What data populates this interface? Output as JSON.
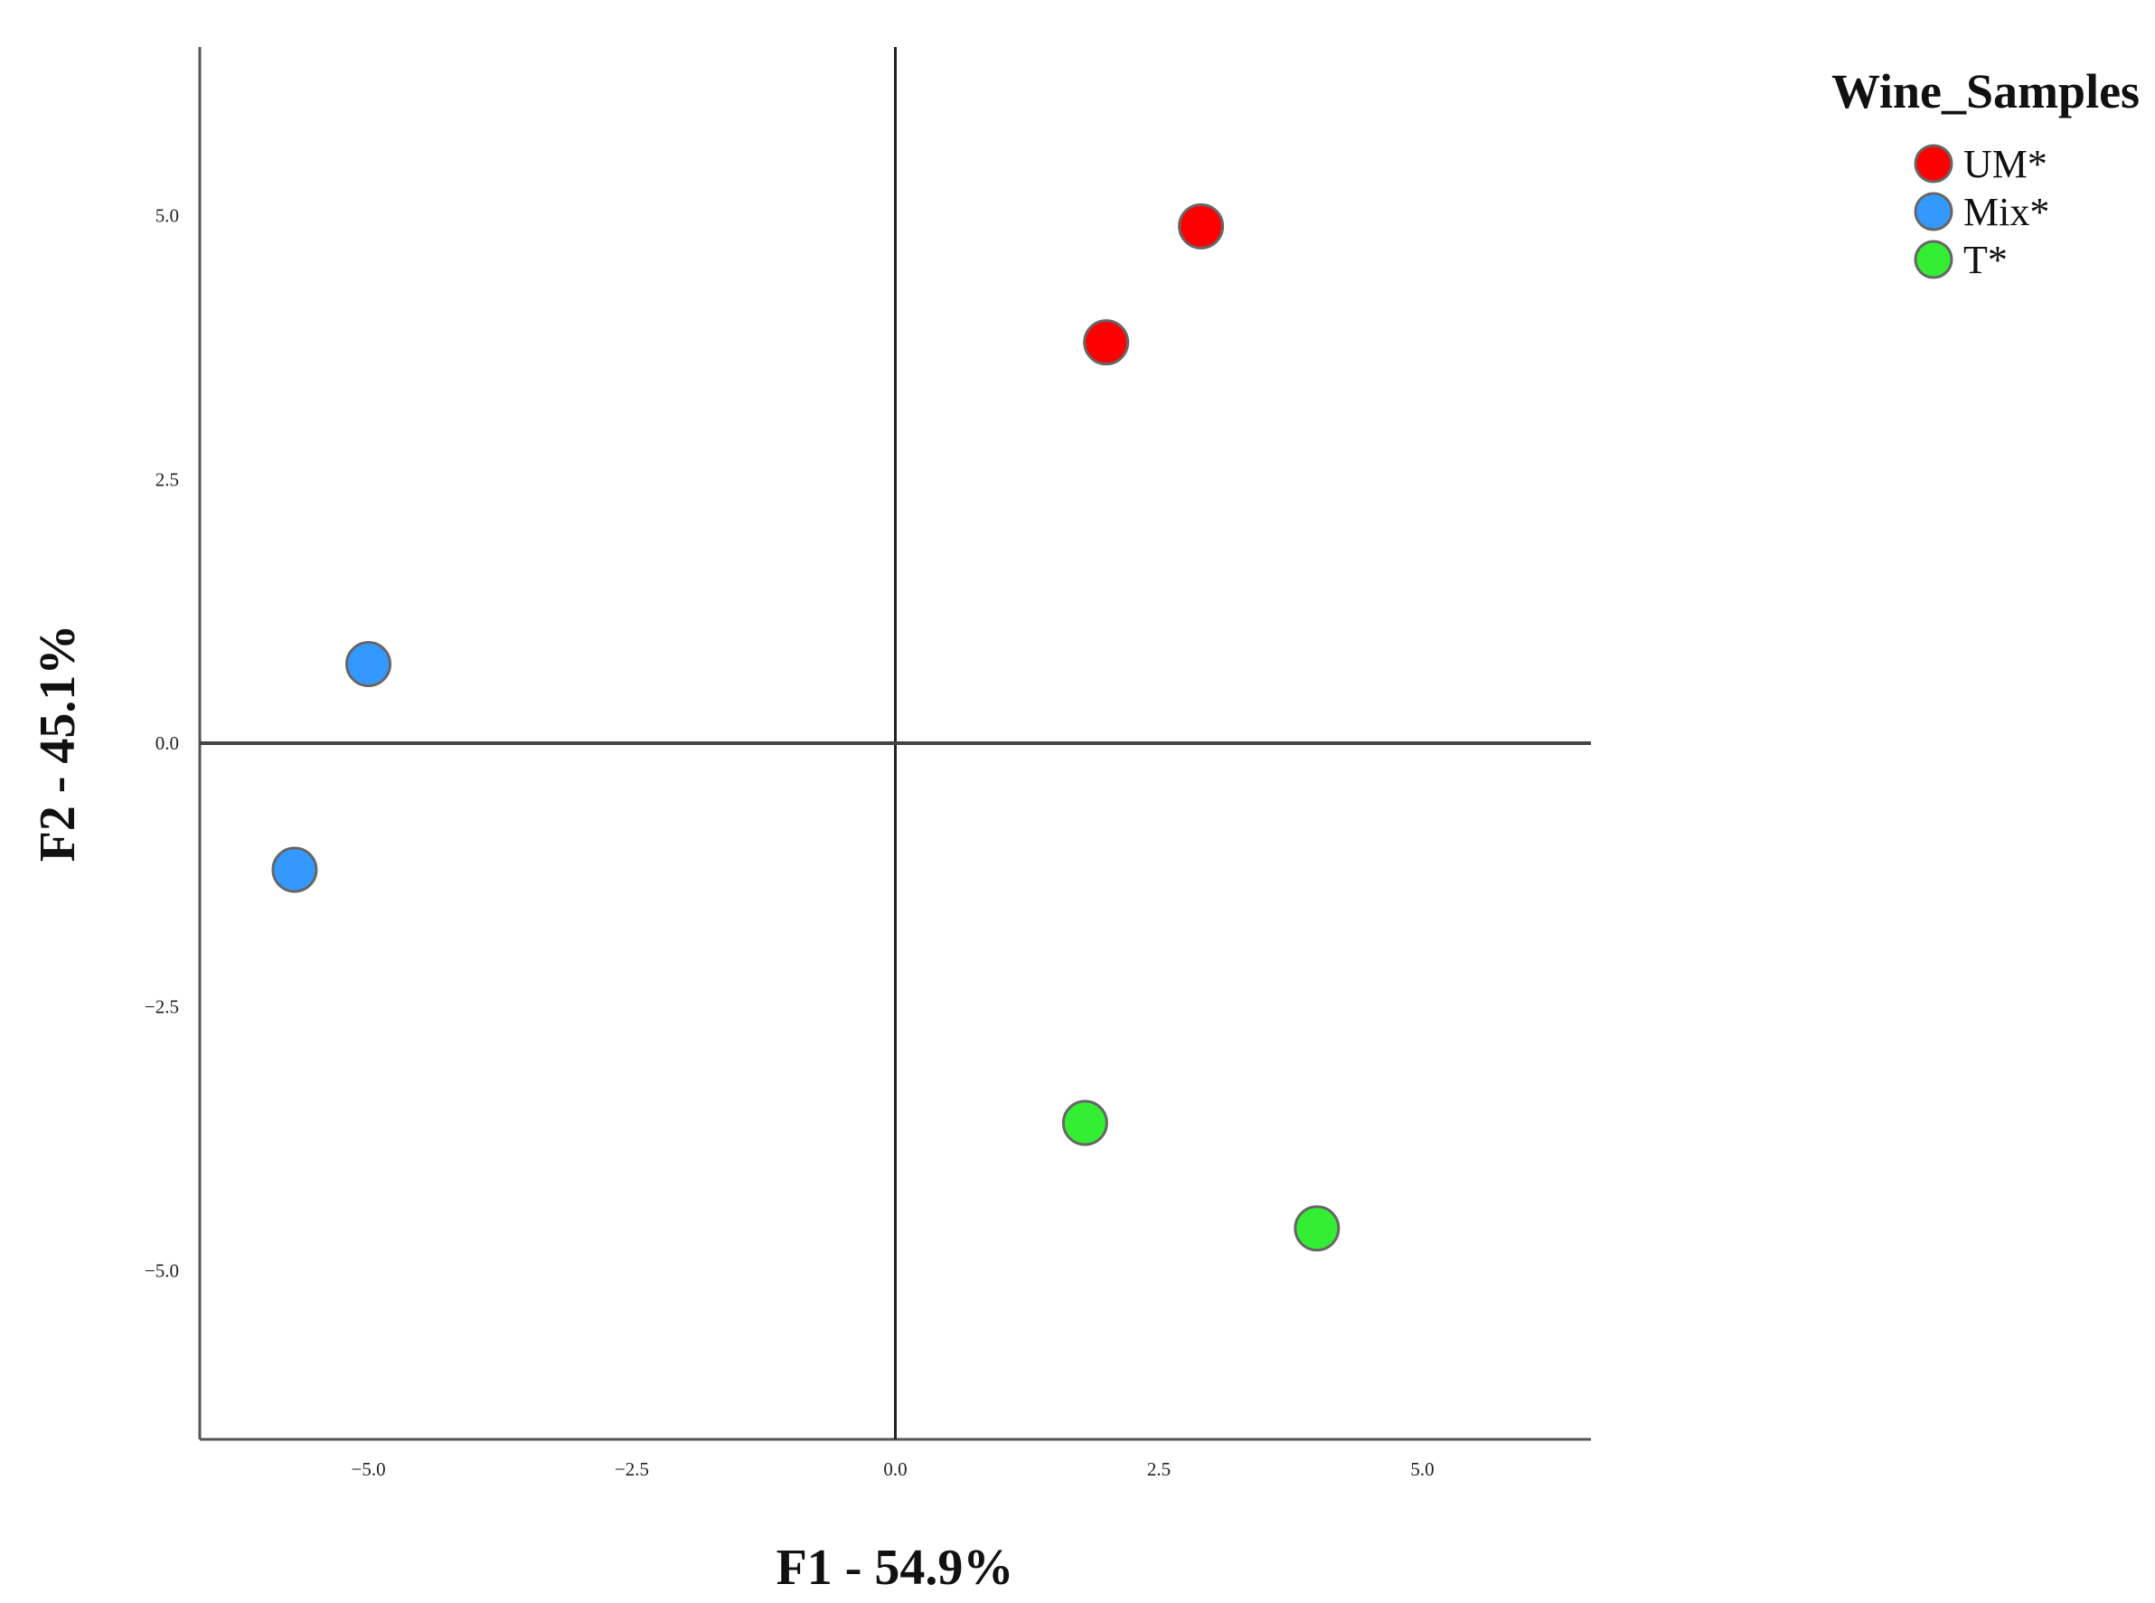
{
  "chart_data": {
    "type": "scatter",
    "title": "",
    "xlabel": "F1 - 54.9%",
    "ylabel": "F2 - 45.1%",
    "xlim": [
      -6.6,
      6.6
    ],
    "ylim": [
      -6.6,
      6.6
    ],
    "grid": false,
    "reference_lines": {
      "x": 0,
      "y": 0
    },
    "x_ticks": [
      {
        "value": -5.0,
        "label": "−5.0"
      },
      {
        "value": -2.5,
        "label": "−2.5"
      },
      {
        "value": 0.0,
        "label": "0.0"
      },
      {
        "value": 2.5,
        "label": "2.5"
      },
      {
        "value": 5.0,
        "label": "5.0"
      }
    ],
    "y_ticks": [
      {
        "value": 5.0,
        "label": "5.0"
      },
      {
        "value": 2.5,
        "label": "2.5"
      },
      {
        "value": 0.0,
        "label": "0.0"
      },
      {
        "value": -2.5,
        "label": "−2.5"
      },
      {
        "value": -5.0,
        "label": "−5.0"
      }
    ],
    "legend": {
      "title": "Wine_Samples",
      "placement": "top-right"
    },
    "series": [
      {
        "name": "UM*",
        "color": "#ff0000",
        "points": [
          {
            "x": 2.9,
            "y": 4.9
          },
          {
            "x": 2.0,
            "y": 3.8
          }
        ]
      },
      {
        "name": "Mix*",
        "color": "#3399ff",
        "points": [
          {
            "x": -5.0,
            "y": 0.75
          },
          {
            "x": -5.7,
            "y": -1.2
          }
        ]
      },
      {
        "name": "T*",
        "color": "#33ee33",
        "points": [
          {
            "x": 1.8,
            "y": -3.6
          },
          {
            "x": 4.0,
            "y": -4.6
          }
        ]
      }
    ]
  }
}
